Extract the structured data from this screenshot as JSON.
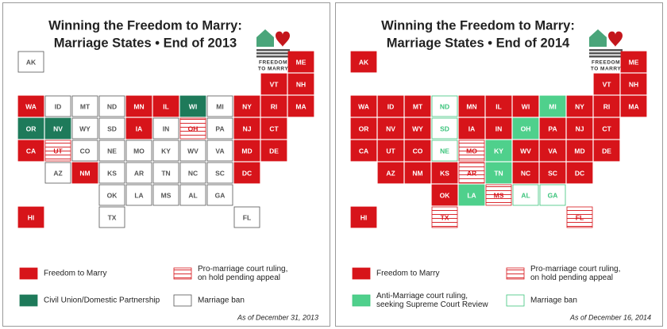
{
  "panels": [
    {
      "title": [
        "Winning the Freedom to Marry:",
        "Marriage States • End of 2013"
      ],
      "logo": [
        "FREEDOM",
        "TO MARRY"
      ],
      "states": [
        {
          "label": "AK",
          "fill": "#ffffff",
          "stroke": "#555555"
        },
        {
          "label": "ME",
          "fill": "#d7141a",
          "stroke": "#ffffff"
        },
        {
          "label": "VT",
          "fill": "#d7141a",
          "stroke": "#ffffff"
        },
        {
          "label": "NH",
          "fill": "#d7141a",
          "stroke": "#ffffff"
        },
        {
          "label": "WA",
          "fill": "#d7141a",
          "stroke": "#ffffff"
        },
        {
          "label": "ID",
          "fill": "#ffffff",
          "stroke": "#555555"
        },
        {
          "label": "MT",
          "fill": "#ffffff",
          "stroke": "#555555"
        },
        {
          "label": "ND",
          "fill": "#ffffff",
          "stroke": "#555555"
        },
        {
          "label": "MN",
          "fill": "#d7141a",
          "stroke": "#ffffff"
        },
        {
          "label": "IL",
          "fill": "#d7141a",
          "stroke": "#ffffff"
        },
        {
          "label": "WI",
          "fill": "#1e7a5a",
          "stroke": "#ffffff"
        },
        {
          "label": "MI",
          "fill": "#ffffff",
          "stroke": "#555555"
        },
        {
          "label": "NY",
          "fill": "#d7141a",
          "stroke": "#ffffff"
        },
        {
          "label": "RI",
          "fill": "#d7141a",
          "stroke": "#ffffff"
        },
        {
          "label": "MA",
          "fill": "#d7141a",
          "stroke": "#ffffff"
        },
        {
          "label": "OR",
          "fill": "#1e7a5a",
          "stroke": "#ffffff"
        },
        {
          "label": "NV",
          "fill": "#1e7a5a",
          "stroke": "#ffffff"
        },
        {
          "label": "WY",
          "fill": "#ffffff",
          "stroke": "#555555"
        },
        {
          "label": "SD",
          "fill": "#ffffff",
          "stroke": "#555555"
        },
        {
          "label": "IA",
          "fill": "#d7141a",
          "stroke": "#ffffff"
        },
        {
          "label": "IN",
          "fill": "#ffffff",
          "stroke": "#555555"
        },
        {
          "label": "OH",
          "fill": "#ffffff",
          "stroke": "#d7141a",
          "hatched": true
        },
        {
          "label": "PA",
          "fill": "#ffffff",
          "stroke": "#555555"
        },
        {
          "label": "NJ",
          "fill": "#d7141a",
          "stroke": "#ffffff"
        },
        {
          "label": "CT",
          "fill": "#d7141a",
          "stroke": "#ffffff"
        },
        {
          "label": "CA",
          "fill": "#d7141a",
          "stroke": "#ffffff"
        },
        {
          "label": "UT",
          "fill": "#ffffff",
          "stroke": "#d7141a",
          "hatched": true
        },
        {
          "label": "CO",
          "fill": "#ffffff",
          "stroke": "#555555"
        },
        {
          "label": "NE",
          "fill": "#ffffff",
          "stroke": "#555555"
        },
        {
          "label": "MO",
          "fill": "#ffffff",
          "stroke": "#555555"
        },
        {
          "label": "KY",
          "fill": "#ffffff",
          "stroke": "#555555"
        },
        {
          "label": "WV",
          "fill": "#ffffff",
          "stroke": "#555555"
        },
        {
          "label": "VA",
          "fill": "#ffffff",
          "stroke": "#555555"
        },
        {
          "label": "MD",
          "fill": "#d7141a",
          "stroke": "#ffffff"
        },
        {
          "label": "DE",
          "fill": "#d7141a",
          "stroke": "#ffffff"
        },
        {
          "label": "AZ",
          "fill": "#ffffff",
          "stroke": "#555555"
        },
        {
          "label": "NM",
          "fill": "#d7141a",
          "stroke": "#ffffff"
        },
        {
          "label": "KS",
          "fill": "#ffffff",
          "stroke": "#555555"
        },
        {
          "label": "AR",
          "fill": "#ffffff",
          "stroke": "#555555"
        },
        {
          "label": "TN",
          "fill": "#ffffff",
          "stroke": "#555555"
        },
        {
          "label": "NC",
          "fill": "#ffffff",
          "stroke": "#555555"
        },
        {
          "label": "SC",
          "fill": "#ffffff",
          "stroke": "#555555"
        },
        {
          "label": "DC",
          "fill": "#d7141a",
          "stroke": "#ffffff"
        },
        {
          "label": "OK",
          "fill": "#ffffff",
          "stroke": "#555555"
        },
        {
          "label": "LA",
          "fill": "#ffffff",
          "stroke": "#555555"
        },
        {
          "label": "MS",
          "fill": "#ffffff",
          "stroke": "#555555"
        },
        {
          "label": "AL",
          "fill": "#ffffff",
          "stroke": "#555555"
        },
        {
          "label": "GA",
          "fill": "#ffffff",
          "stroke": "#555555"
        },
        {
          "label": "HI",
          "fill": "#d7141a",
          "stroke": "#ffffff"
        },
        {
          "label": "TX",
          "fill": "#ffffff",
          "stroke": "#555555"
        },
        {
          "label": "FL",
          "fill": "#ffffff",
          "stroke": "#555555"
        }
      ],
      "legend": [
        {
          "label": [
            "Freedom to Marry"
          ],
          "fill": "#d7141a",
          "stroke": "#d7141a"
        },
        {
          "label": [
            "Pro-marriage court ruling,",
            "on hold pending appeal"
          ],
          "fill": "#ffffff",
          "stroke": "#d7141a",
          "hatched": true
        },
        {
          "label": [
            "Civil Union/Domestic Partnership"
          ],
          "fill": "#1e7a5a",
          "stroke": "#1e7a5a"
        },
        {
          "label": [
            "Marriage ban"
          ],
          "fill": "#ffffff",
          "stroke": "#555555"
        }
      ],
      "note": "As of December 31, 2013"
    },
    {
      "title": [
        "Winning the Freedom to Marry:",
        "Marriage States • End of 2014"
      ],
      "logo": [
        "FREEDOM",
        "TO MARRY"
      ],
      "states": [
        {
          "label": "AK",
          "fill": "#d7141a",
          "stroke": "#ffffff"
        },
        {
          "label": "ME",
          "fill": "#d7141a",
          "stroke": "#ffffff"
        },
        {
          "label": "VT",
          "fill": "#d7141a",
          "stroke": "#ffffff"
        },
        {
          "label": "NH",
          "fill": "#d7141a",
          "stroke": "#ffffff"
        },
        {
          "label": "WA",
          "fill": "#d7141a",
          "stroke": "#ffffff"
        },
        {
          "label": "ID",
          "fill": "#d7141a",
          "stroke": "#ffffff"
        },
        {
          "label": "MT",
          "fill": "#d7141a",
          "stroke": "#ffffff"
        },
        {
          "label": "ND",
          "fill": "#ffffff",
          "stroke": "#3cc47c"
        },
        {
          "label": "MN",
          "fill": "#d7141a",
          "stroke": "#ffffff"
        },
        {
          "label": "IL",
          "fill": "#d7141a",
          "stroke": "#ffffff"
        },
        {
          "label": "WI",
          "fill": "#d7141a",
          "stroke": "#ffffff"
        },
        {
          "label": "MI",
          "fill": "#4fd08c",
          "stroke": "#ffffff"
        },
        {
          "label": "NY",
          "fill": "#d7141a",
          "stroke": "#ffffff"
        },
        {
          "label": "RI",
          "fill": "#d7141a",
          "stroke": "#ffffff"
        },
        {
          "label": "MA",
          "fill": "#d7141a",
          "stroke": "#ffffff"
        },
        {
          "label": "OR",
          "fill": "#d7141a",
          "stroke": "#ffffff"
        },
        {
          "label": "NV",
          "fill": "#d7141a",
          "stroke": "#ffffff"
        },
        {
          "label": "WY",
          "fill": "#d7141a",
          "stroke": "#ffffff"
        },
        {
          "label": "SD",
          "fill": "#ffffff",
          "stroke": "#3cc47c"
        },
        {
          "label": "IA",
          "fill": "#d7141a",
          "stroke": "#ffffff"
        },
        {
          "label": "IN",
          "fill": "#d7141a",
          "stroke": "#ffffff"
        },
        {
          "label": "OH",
          "fill": "#4fd08c",
          "stroke": "#ffffff"
        },
        {
          "label": "PA",
          "fill": "#d7141a",
          "stroke": "#ffffff"
        },
        {
          "label": "NJ",
          "fill": "#d7141a",
          "stroke": "#ffffff"
        },
        {
          "label": "CT",
          "fill": "#d7141a",
          "stroke": "#ffffff"
        },
        {
          "label": "CA",
          "fill": "#d7141a",
          "stroke": "#ffffff"
        },
        {
          "label": "UT",
          "fill": "#d7141a",
          "stroke": "#ffffff"
        },
        {
          "label": "CO",
          "fill": "#d7141a",
          "stroke": "#ffffff"
        },
        {
          "label": "NE",
          "fill": "#ffffff",
          "stroke": "#3cc47c"
        },
        {
          "label": "MO",
          "fill": "#ffffff",
          "stroke": "#d7141a",
          "hatched": true
        },
        {
          "label": "KY",
          "fill": "#4fd08c",
          "stroke": "#ffffff"
        },
        {
          "label": "WV",
          "fill": "#d7141a",
          "stroke": "#ffffff"
        },
        {
          "label": "VA",
          "fill": "#d7141a",
          "stroke": "#ffffff"
        },
        {
          "label": "MD",
          "fill": "#d7141a",
          "stroke": "#ffffff"
        },
        {
          "label": "DE",
          "fill": "#d7141a",
          "stroke": "#ffffff"
        },
        {
          "label": "AZ",
          "fill": "#d7141a",
          "stroke": "#ffffff"
        },
        {
          "label": "NM",
          "fill": "#d7141a",
          "stroke": "#ffffff"
        },
        {
          "label": "KS",
          "fill": "#d7141a",
          "stroke": "#ffffff"
        },
        {
          "label": "AR",
          "fill": "#ffffff",
          "stroke": "#d7141a",
          "hatched": true
        },
        {
          "label": "TN",
          "fill": "#4fd08c",
          "stroke": "#ffffff"
        },
        {
          "label": "NC",
          "fill": "#d7141a",
          "stroke": "#ffffff"
        },
        {
          "label": "SC",
          "fill": "#d7141a",
          "stroke": "#ffffff"
        },
        {
          "label": "DC",
          "fill": "#d7141a",
          "stroke": "#ffffff"
        },
        {
          "label": "OK",
          "fill": "#d7141a",
          "stroke": "#ffffff"
        },
        {
          "label": "LA",
          "fill": "#4fd08c",
          "stroke": "#ffffff"
        },
        {
          "label": "MS",
          "fill": "#ffffff",
          "stroke": "#d7141a",
          "hatched": true
        },
        {
          "label": "AL",
          "fill": "#ffffff",
          "stroke": "#3cc47c"
        },
        {
          "label": "GA",
          "fill": "#ffffff",
          "stroke": "#3cc47c"
        },
        {
          "label": "HI",
          "fill": "#d7141a",
          "stroke": "#ffffff"
        },
        {
          "label": "TX",
          "fill": "#ffffff",
          "stroke": "#d7141a",
          "hatched": true
        },
        {
          "label": "FL",
          "fill": "#ffffff",
          "stroke": "#d7141a",
          "hatched": true
        }
      ],
      "legend": [
        {
          "label": [
            "Freedom to Marry"
          ],
          "fill": "#d7141a",
          "stroke": "#d7141a"
        },
        {
          "label": [
            "Pro-marriage court ruling,",
            "on hold pending appeal"
          ],
          "fill": "#ffffff",
          "stroke": "#d7141a",
          "hatched": true
        },
        {
          "label": [
            "Anti-Marriage court ruling,",
            "seeking Supreme Court Review"
          ],
          "fill": "#4fd08c",
          "stroke": "#3cc47c"
        },
        {
          "label": [
            "Marriage ban"
          ],
          "fill": "#ffffff",
          "stroke": "#3cc47c"
        }
      ],
      "note": "As of December 16, 2014"
    }
  ]
}
